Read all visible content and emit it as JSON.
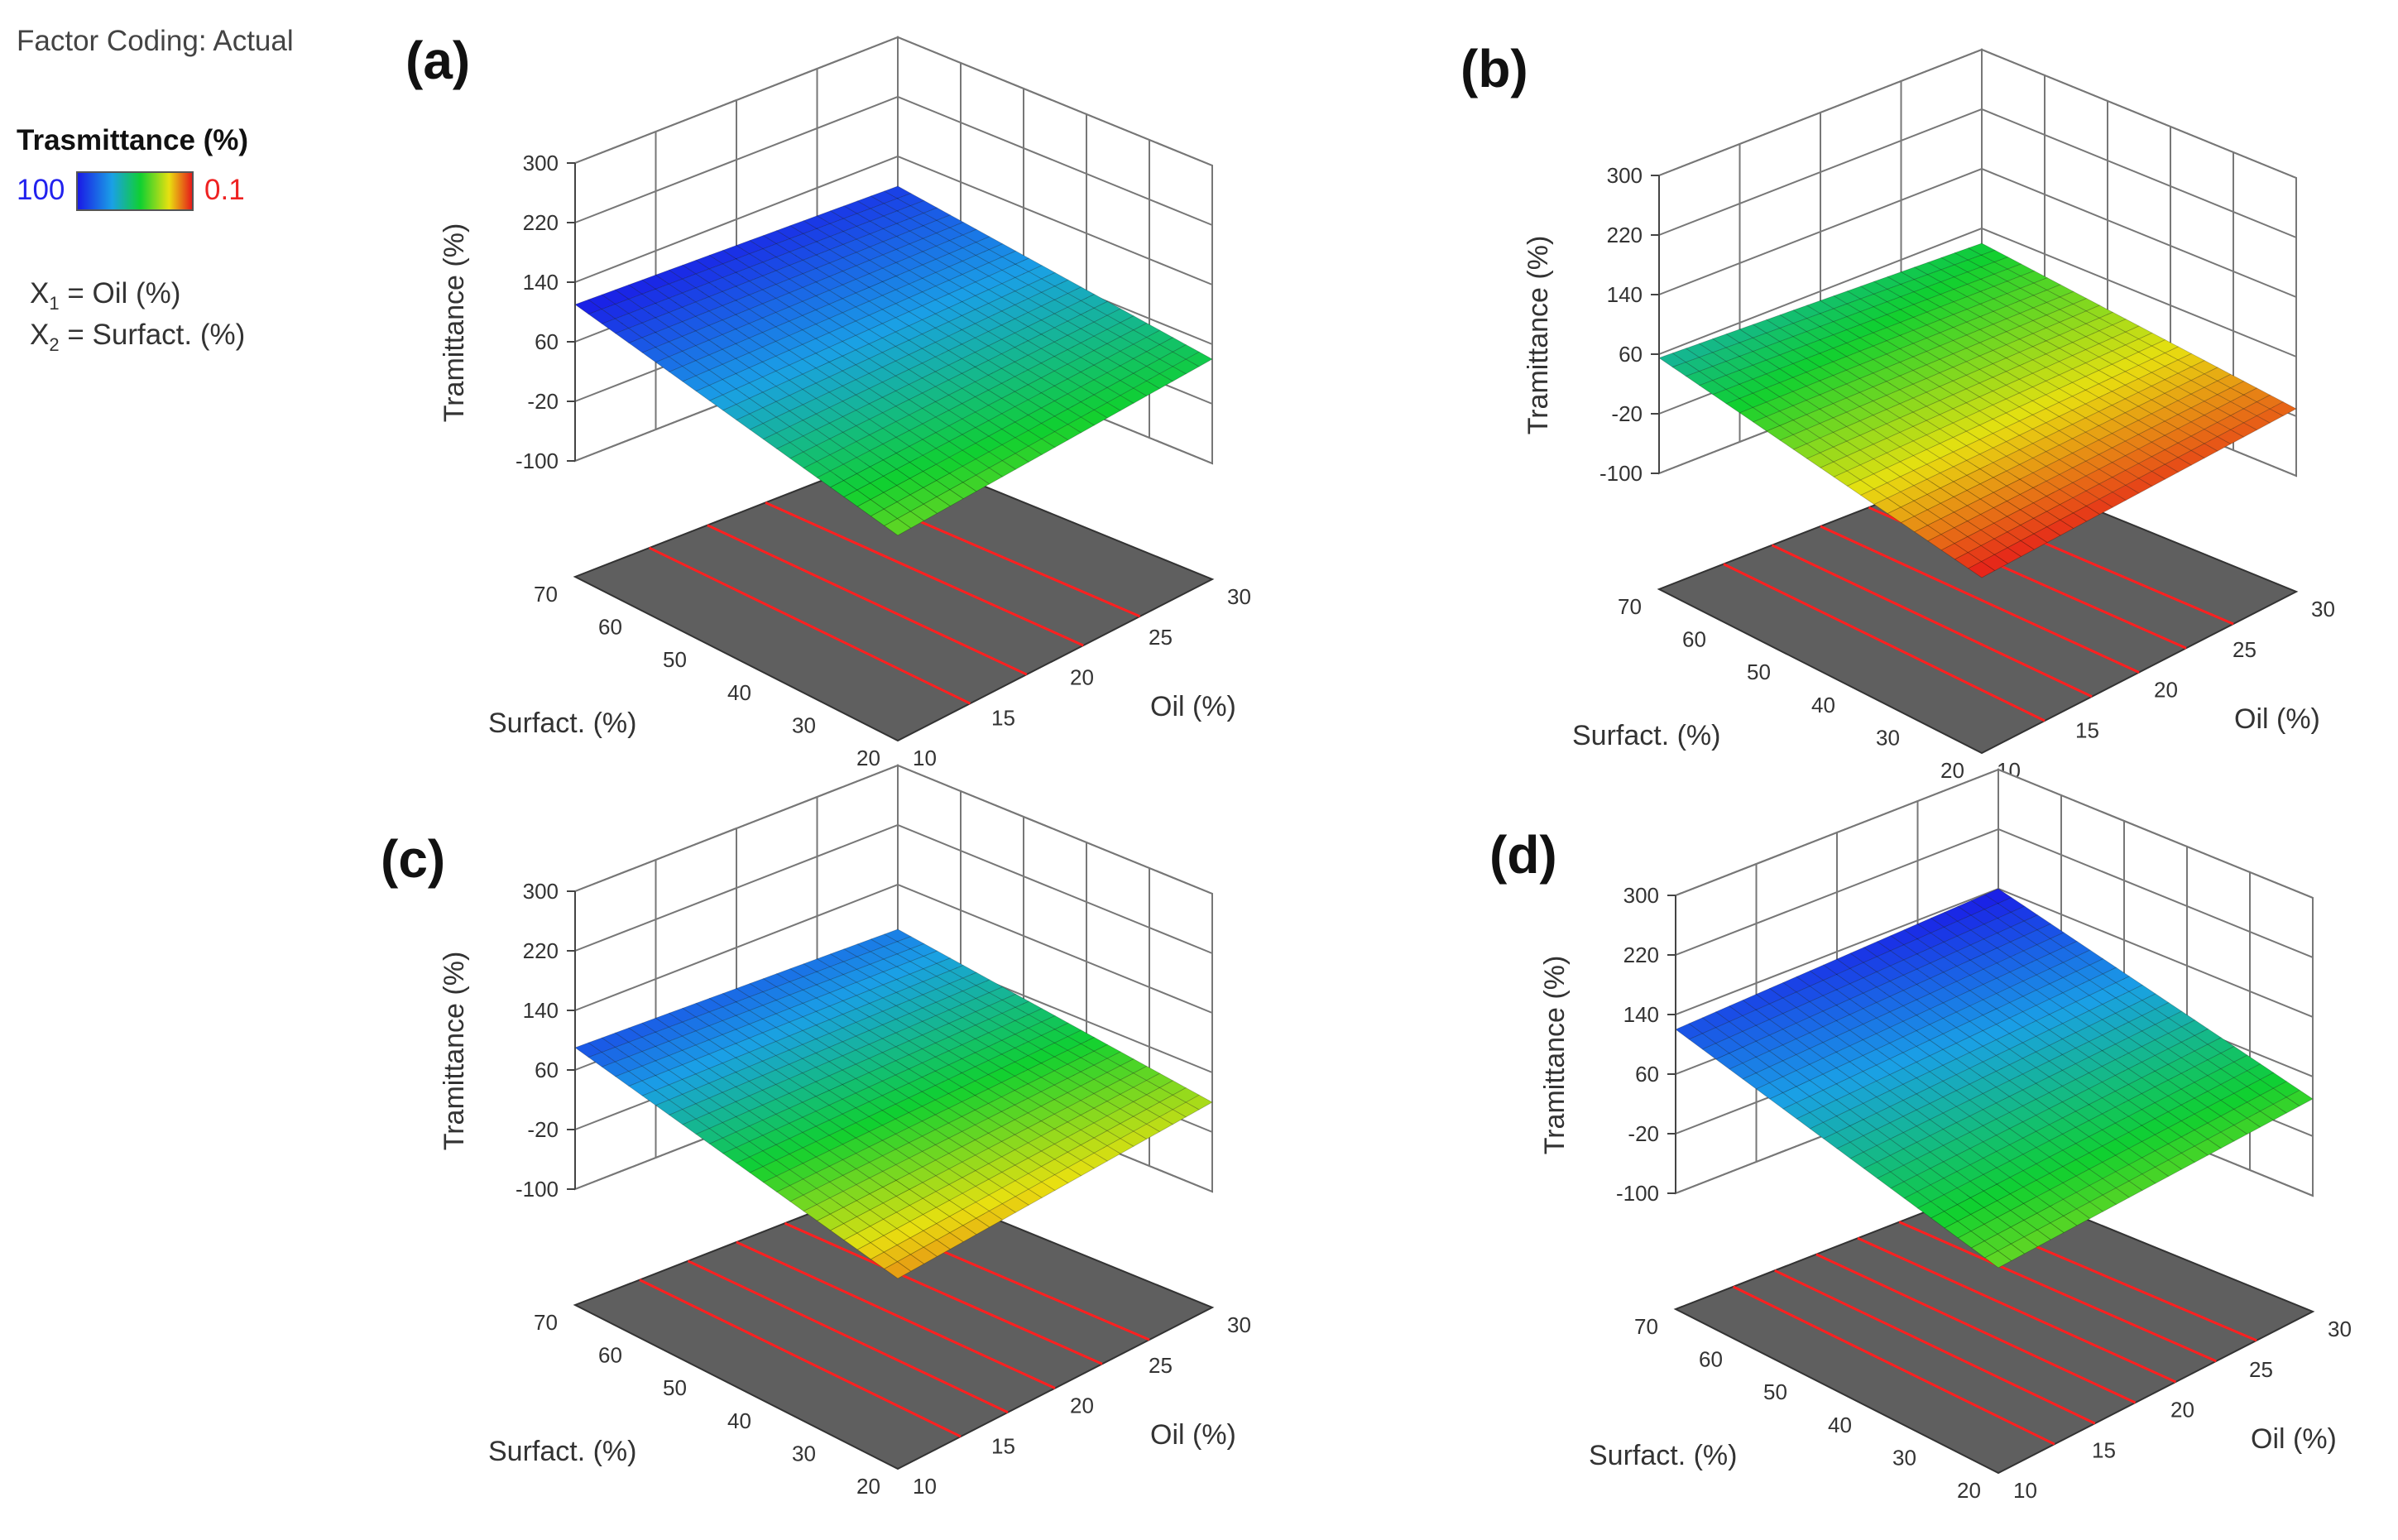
{
  "legend": {
    "factor_coding": "Factor Coding: Actual",
    "response_title": "Trasmittance (%)",
    "color_low_label": "100",
    "color_high_label": "0.1",
    "x1_sym": "X",
    "x1_sub": "1",
    "x1_def": "= Oil (%)",
    "x2_sym": "X",
    "x2_sub": "2",
    "x2_def": "= Surfact. (%)",
    "colors": [
      "#1a1ae6",
      "#1aa0e6",
      "#10d030",
      "#e8e010",
      "#e61a1a"
    ]
  },
  "chart_data": [
    {
      "panel": "(a)",
      "type": "surface",
      "z_label": "Tramittance (%)",
      "x_label": "Oil (%)",
      "y_label": "Surfact. (%)",
      "z_ticks": [
        300,
        220,
        140,
        60,
        -20,
        -100
      ],
      "x_ticks": [
        10,
        15,
        20,
        25,
        30
      ],
      "y_ticks": [
        20,
        30,
        40,
        50,
        60,
        70
      ],
      "z_range": [
        -100,
        300
      ],
      "x_range": [
        10,
        30
      ],
      "y_range": [
        20,
        70
      ],
      "corner_z": {
        "oil10_surf70": 110,
        "oil10_surf20": 20,
        "oil30_surf70": 100,
        "oil30_surf20": 40
      },
      "contour_count": 4
    },
    {
      "panel": "(b)",
      "type": "surface",
      "z_label": "Tramittance (%)",
      "x_label": "Oil (%)",
      "y_label": "Surfact. (%)",
      "z_ticks": [
        300,
        220,
        140,
        60,
        -20,
        -100
      ],
      "x_ticks": [
        10,
        15,
        20,
        25,
        30
      ],
      "y_ticks": [
        20,
        30,
        40,
        50,
        60,
        70
      ],
      "z_range": [
        -100,
        300
      ],
      "x_range": [
        10,
        30
      ],
      "y_range": [
        20,
        70
      ],
      "corner_z": {
        "oil10_surf70": 55,
        "oil10_surf20": -20,
        "oil30_surf70": 40,
        "oil30_surf20": -10
      },
      "contour_count": 5
    },
    {
      "panel": "(c)",
      "type": "surface",
      "z_label": "Tramittance (%)",
      "x_label": "Oil (%)",
      "y_label": "Surfact. (%)",
      "z_ticks": [
        300,
        220,
        140,
        60,
        -20,
        -100
      ],
      "x_ticks": [
        10,
        15,
        20,
        25,
        30
      ],
      "y_ticks": [
        20,
        30,
        40,
        50,
        60,
        70
      ],
      "z_range": [
        -100,
        300
      ],
      "x_range": [
        10,
        30
      ],
      "y_range": [
        20,
        70
      ],
      "corner_z": {
        "oil10_surf70": 90,
        "oil10_surf20": 0,
        "oil30_surf70": 80,
        "oil30_surf20": 20
      },
      "contour_count": 5
    },
    {
      "panel": "(d)",
      "type": "surface",
      "z_label": "Tramittance (%)",
      "x_label": "Oil (%)",
      "y_label": "Surfact. (%)",
      "z_ticks": [
        300,
        220,
        140,
        60,
        -20,
        -100
      ],
      "x_ticks": [
        10,
        15,
        20,
        25,
        30
      ],
      "y_ticks": [
        20,
        30,
        40,
        50,
        60,
        70
      ],
      "z_range": [
        -100,
        300
      ],
      "x_range": [
        10,
        30
      ],
      "y_range": [
        20,
        70
      ],
      "corner_z": {
        "oil10_surf70": 120,
        "oil10_surf20": 20,
        "oil30_surf70": 140,
        "oil30_surf20": 30
      },
      "contour_count": 6
    }
  ]
}
